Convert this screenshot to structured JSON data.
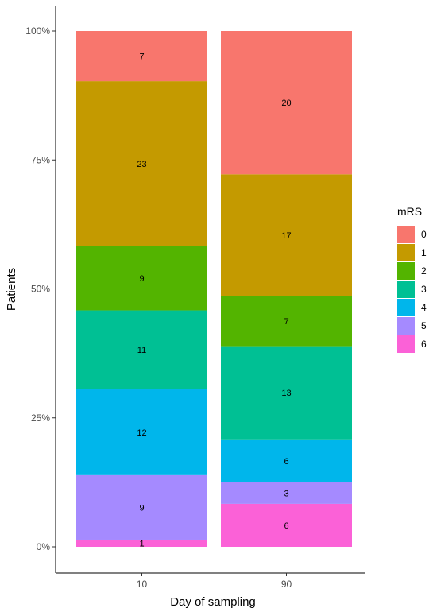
{
  "chart_data": {
    "type": "bar",
    "stacked": true,
    "normalized": true,
    "categories": [
      "10",
      "90"
    ],
    "xlabel": "Day of sampling",
    "ylabel": "Patients",
    "ylim": [
      0,
      1
    ],
    "yticks": [
      "0%",
      "25%",
      "50%",
      "75%",
      "100%"
    ],
    "legend": {
      "title": "mRS",
      "position": "right"
    },
    "series": [
      {
        "name": "0",
        "color": "#F8766D",
        "values": [
          7,
          20
        ]
      },
      {
        "name": "1",
        "color": "#C49A00",
        "values": [
          23,
          17
        ]
      },
      {
        "name": "2",
        "color": "#53B400",
        "values": [
          9,
          7
        ]
      },
      {
        "name": "3",
        "color": "#00C094",
        "values": [
          11,
          13
        ]
      },
      {
        "name": "4",
        "color": "#00B6EB",
        "values": [
          12,
          6
        ]
      },
      {
        "name": "5",
        "color": "#A58AFF",
        "values": [
          9,
          3
        ]
      },
      {
        "name": "6",
        "color": "#FB61D7",
        "values": [
          1,
          6
        ]
      }
    ],
    "grid": false
  }
}
